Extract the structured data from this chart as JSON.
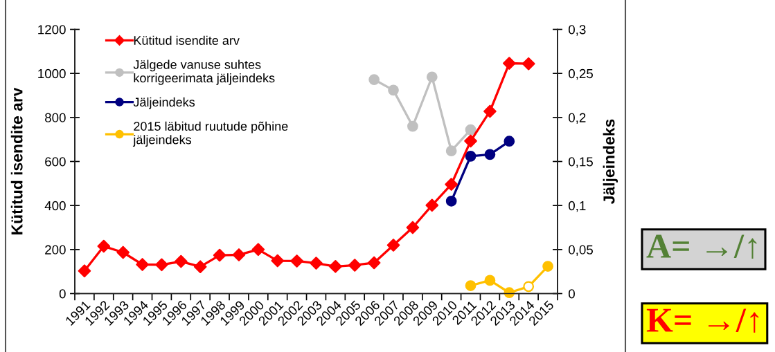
{
  "chart_data": {
    "type": "line",
    "ylabel": "Kütitud isendite arv",
    "y2label": "Jäljeindeks",
    "categories": [
      "1991",
      "1992",
      "1993",
      "1994",
      "1995",
      "1996",
      "1997",
      "1998",
      "1999",
      "2000",
      "2001",
      "2002",
      "2003",
      "2004",
      "2005",
      "2006",
      "2007",
      "2008",
      "2009",
      "2010",
      "2011",
      "2012",
      "2013",
      "2014",
      "2015"
    ],
    "ylim": [
      0,
      1200
    ],
    "yticks": [
      0,
      200,
      400,
      600,
      800,
      1000,
      1200
    ],
    "y2lim": [
      0,
      0.3
    ],
    "y2ticks": [
      0,
      {
        "value": 0.05,
        "label": "0,05"
      },
      {
        "value": 0.1,
        "label": "0,1"
      },
      {
        "value": 0.15,
        "label": "0,15"
      },
      {
        "value": 0.2,
        "label": "0,2"
      },
      {
        "value": 0.25,
        "label": "0,25"
      },
      {
        "value": 0.3,
        "label": "0,3"
      }
    ],
    "series": [
      {
        "name": "Kütitud isendite arv",
        "color": "#ff0000",
        "marker": "diamond",
        "values": [
          103,
          215,
          187,
          132,
          131,
          146,
          122,
          174,
          176,
          200,
          149,
          148,
          138,
          123,
          129,
          140,
          220,
          300,
          401,
          496,
          693,
          828,
          1046,
          1044,
          null
        ]
      },
      {
        "name": "Jälgede vanuse suhtes\nkorrigeerimata jäljeindeks",
        "color": "#c0c0c0",
        "marker": "circle",
        "axis": "y2",
        "values": [
          null,
          null,
          null,
          null,
          null,
          null,
          null,
          null,
          null,
          null,
          null,
          null,
          null,
          null,
          null,
          0.243,
          0.231,
          0.19,
          0.246,
          0.162,
          0.186,
          null,
          null,
          null,
          null
        ]
      },
      {
        "name": "Jäljeindeks",
        "color": "#000080",
        "marker": "circle",
        "axis": "y2",
        "values": [
          null,
          null,
          null,
          null,
          null,
          null,
          null,
          null,
          null,
          null,
          null,
          null,
          null,
          null,
          null,
          null,
          null,
          null,
          null,
          0.105,
          0.156,
          0.158,
          0.173,
          null,
          null
        ]
      },
      {
        "name": "2015 läbitud ruutude põhine\njäljeindeks",
        "color": "#ffc000",
        "marker": "circle",
        "axis": "y2",
        "values": [
          null,
          null,
          null,
          null,
          null,
          null,
          null,
          null,
          null,
          null,
          null,
          null,
          null,
          null,
          null,
          null,
          null,
          null,
          null,
          null,
          0.009,
          0.015,
          0.001,
          0.008,
          0.031
        ],
        "colors": [
          null,
          null,
          null,
          null,
          null,
          null,
          null,
          null,
          null,
          null,
          null,
          null,
          null,
          null,
          null,
          null,
          null,
          null,
          null,
          null,
          "#ffc000",
          "#ffc000",
          "#ffc000",
          "#ffffff",
          "#ffc000"
        ]
      }
    ],
    "legend": "top left",
    "grid": false,
    "line_style": "solid",
    "annotations": [
      "A= →/↑",
      "K= →/↑"
    ]
  }
}
